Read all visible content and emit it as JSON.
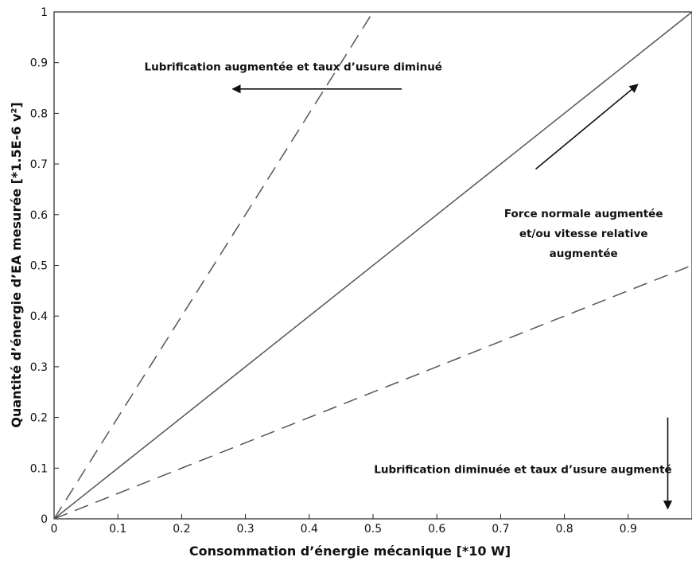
{
  "chart_data": {
    "type": "line",
    "title": "",
    "xlabel": "Consommation d’énergie mécanique [*10 W]",
    "ylabel": "Quantité d’énergie d’EA mesurée [*1.5E-6 v²]",
    "xlim": [
      0,
      1
    ],
    "ylim": [
      0,
      1
    ],
    "x_ticks": [
      "0",
      "0.1",
      "0.2",
      "0.3",
      "0.4",
      "0.5",
      "0.6",
      "0.7",
      "0.8",
      "0.9"
    ],
    "y_ticks": [
      "0",
      "0.1",
      "0.2",
      "0.3",
      "0.4",
      "0.5",
      "0.6",
      "0.7",
      "0.8",
      "0.9",
      "1"
    ],
    "grid": false,
    "series": [
      {
        "style": "dashed",
        "color": "#555555",
        "x": [
          0,
          0.5
        ],
        "y": [
          0,
          1.0
        ]
      },
      {
        "style": "solid",
        "color": "#555555",
        "x": [
          0,
          1.0
        ],
        "y": [
          0,
          1.0
        ]
      },
      {
        "style": "dashed",
        "color": "#555555",
        "x": [
          0,
          1.0
        ],
        "y": [
          0,
          0.5
        ]
      }
    ],
    "annotations": [
      {
        "lines": [
          "Lubrification augmentée et taux d’usure diminué"
        ],
        "x": 0.375,
        "y": 0.885,
        "align": "middle"
      },
      {
        "lines": [
          "Force normale augmentée",
          "et/ou vitesse relative",
          "augmentée"
        ],
        "x": 0.83,
        "y": 0.595,
        "align": "middle"
      },
      {
        "lines": [
          "Lubrification diminuée et taux d’usure augmenté"
        ],
        "x": 0.735,
        "y": 0.09,
        "align": "middle"
      }
    ],
    "arrows": [
      {
        "x1": 0.545,
        "y1": 0.848,
        "x2": 0.28,
        "y2": 0.848
      },
      {
        "x1": 0.755,
        "y1": 0.69,
        "x2": 0.915,
        "y2": 0.857
      },
      {
        "x1": 0.962,
        "y1": 0.2,
        "x2": 0.962,
        "y2": 0.02
      }
    ]
  }
}
